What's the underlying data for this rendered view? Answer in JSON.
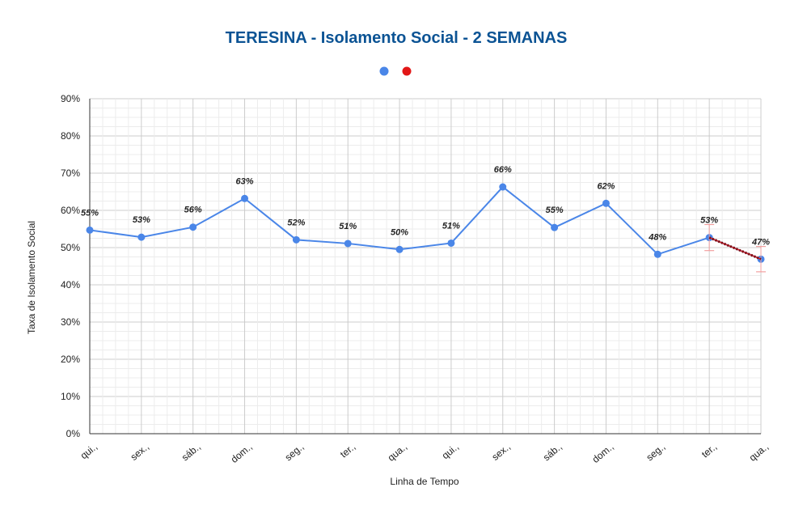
{
  "chart_data": {
    "type": "line",
    "title": "TERESINA - Isolamento Social - 2 SEMANAS",
    "xlabel": "Linha de Tempo",
    "ylabel": "Taxa de Isolamento Social",
    "ylim": [
      0,
      0.9
    ],
    "ytick_labels": [
      "0%",
      "10%",
      "20%",
      "30%",
      "40%",
      "50%",
      "60%",
      "70%",
      "80%",
      "90%"
    ],
    "grid": true,
    "legend": "top-center",
    "categories": [
      "qui.,",
      "sex.,",
      "sáb.,",
      "dom.,",
      "seg.,",
      "ter.,",
      "qua.,",
      "qui.,",
      "sex.,",
      "sáb.,",
      "dom.,",
      "seg.,",
      "ter.,",
      "qua.,"
    ],
    "series": [
      {
        "color": "#4a86e8",
        "values": [
          0.547,
          0.528,
          0.555,
          0.632,
          0.521,
          0.511,
          0.495,
          0.512,
          0.663,
          0.554,
          0.619,
          0.482,
          0.527,
          0.469
        ],
        "labels": [
          "55%",
          "53%",
          "56%",
          "63%",
          "52%",
          "51%",
          "50%",
          "51%",
          "66%",
          "55%",
          "62%",
          "48%",
          "53%",
          "47%"
        ]
      },
      {
        "color": "#e21717",
        "trend": {
          "x_index": [
            12,
            13
          ],
          "values": [
            0.527,
            0.469
          ],
          "error_bars": [
            [
              0.492,
              0.562
            ],
            [
              0.435,
              0.503
            ]
          ]
        }
      }
    ],
    "colors": {
      "title": "#0b5394",
      "grid": "#d9d9d9",
      "axis": "#333333"
    }
  }
}
